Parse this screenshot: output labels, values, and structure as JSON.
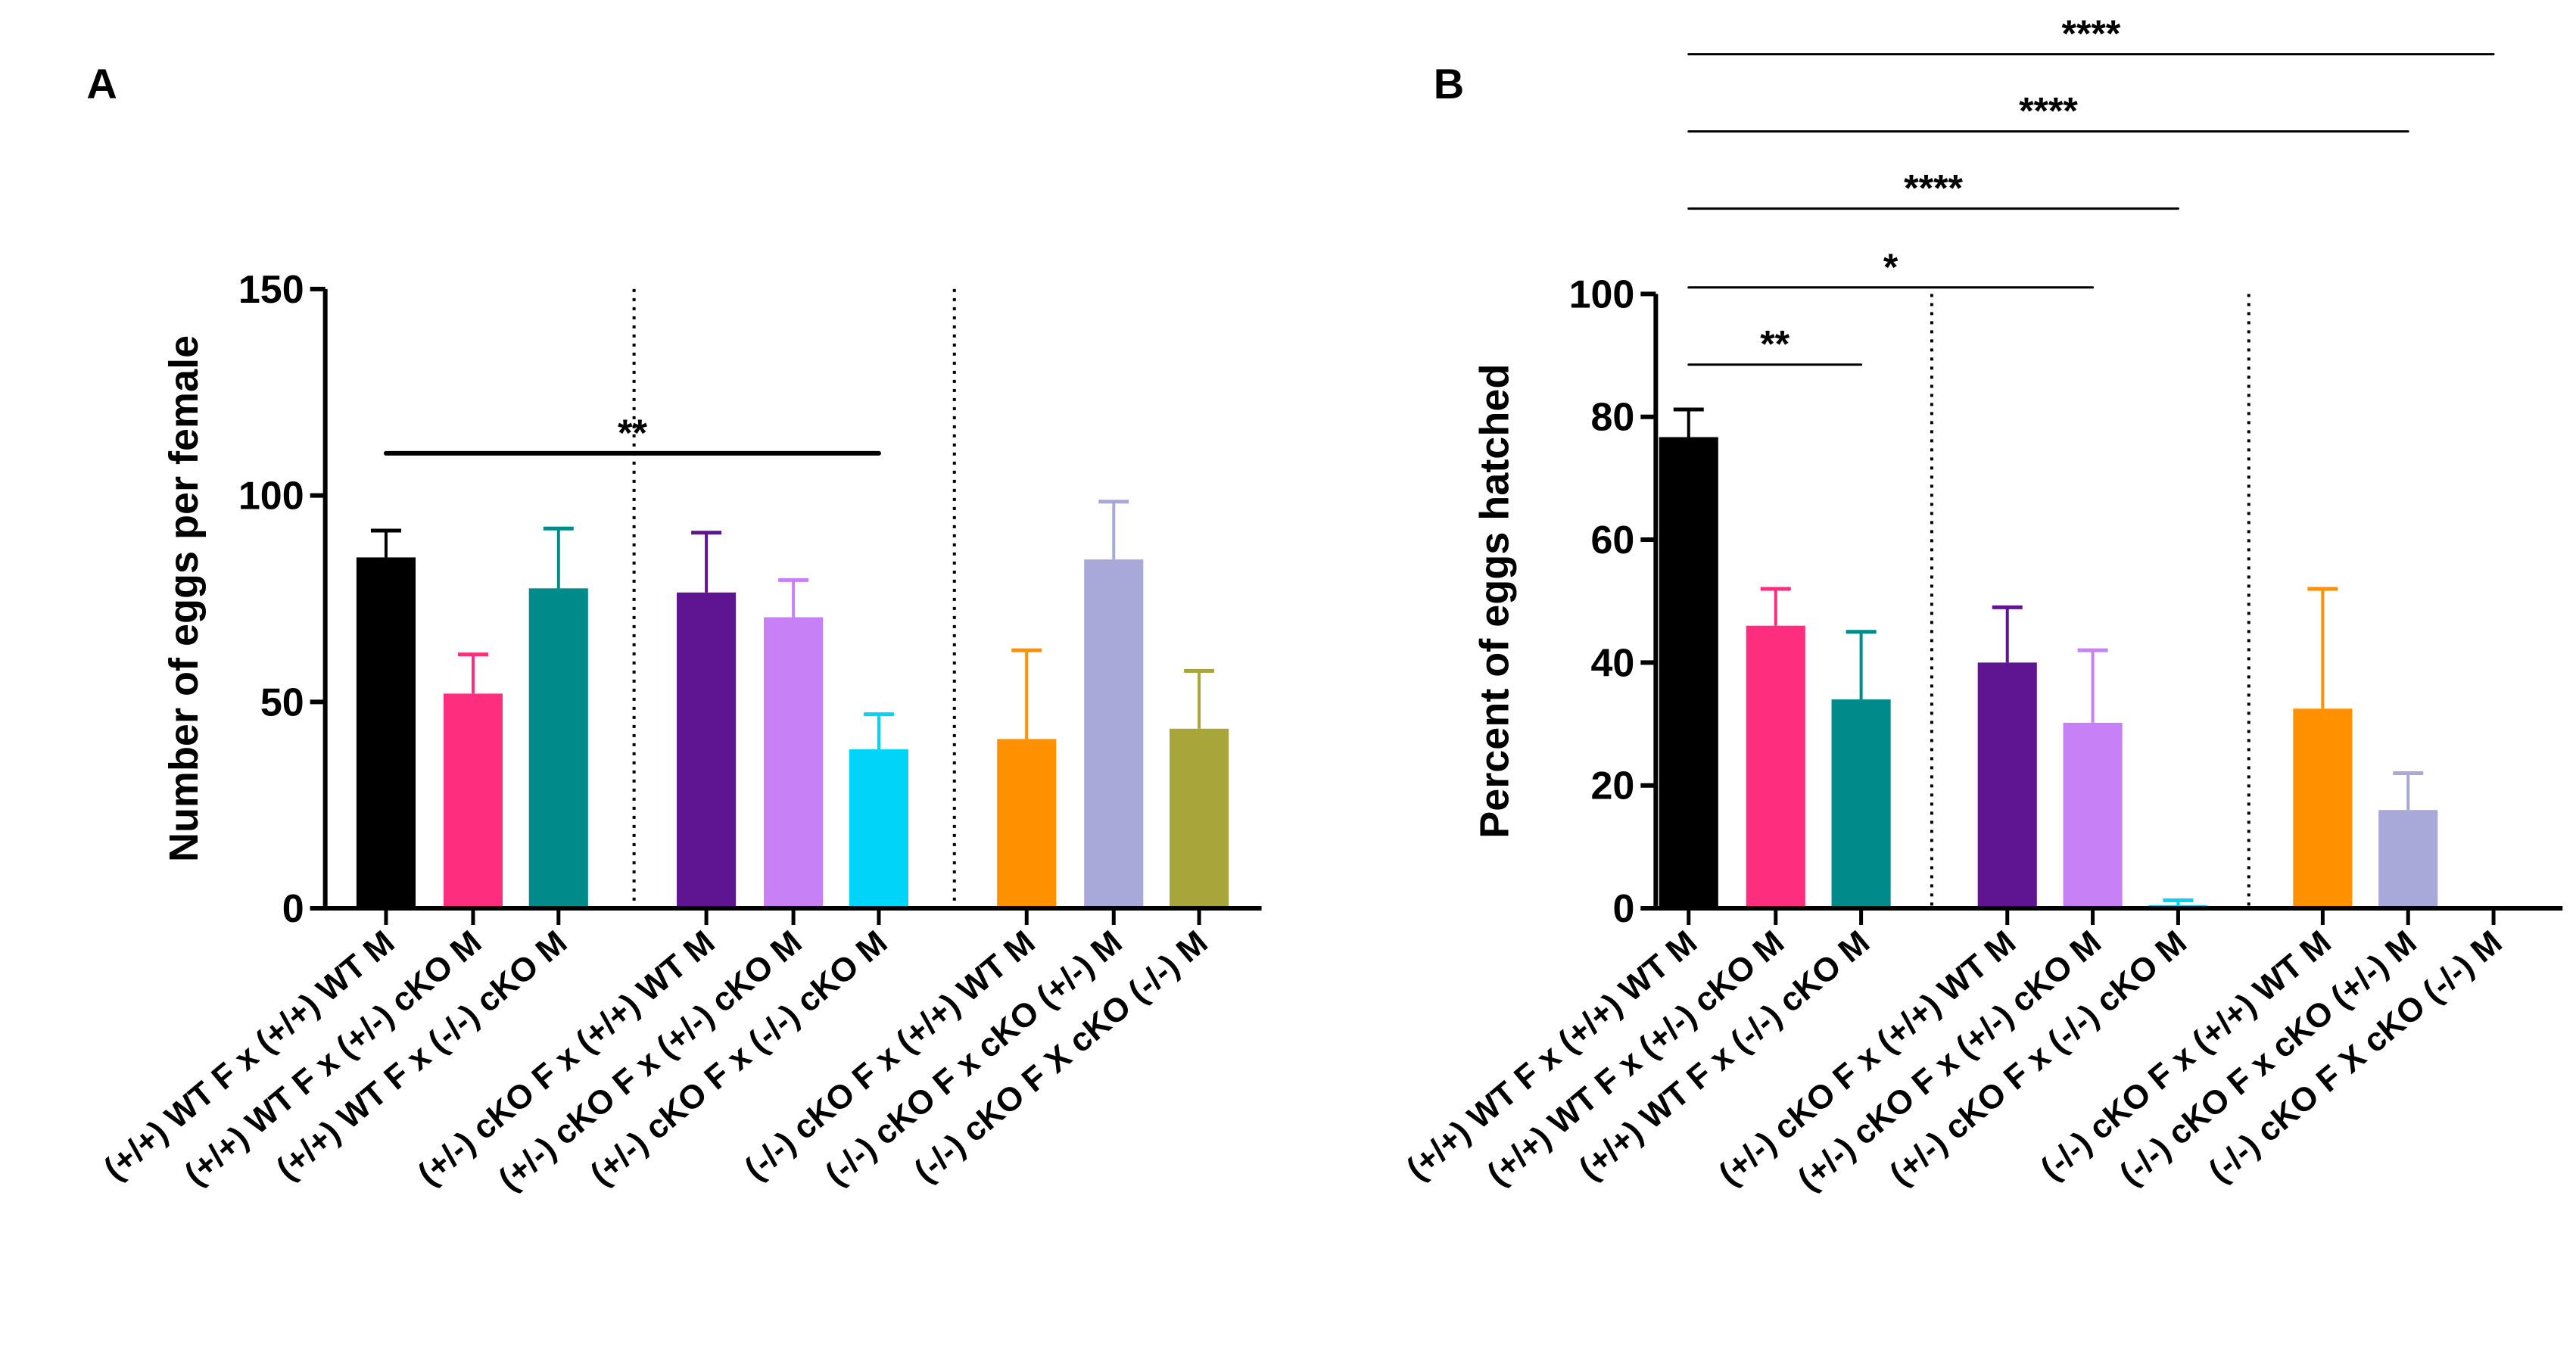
{
  "chart_data": [
    {
      "panel": "A",
      "type": "bar",
      "ylabel": "Number of eggs per female",
      "ylim": [
        0,
        150
      ],
      "yticks": [
        "0",
        "50",
        "100",
        "150"
      ],
      "categories": [
        "(+/+) WT F x (+/+) WT M",
        "(+/+) WT F x (+/-) cKO M",
        "(+/+) WT F x (-/-) cKO M",
        "(+/-) cKO F x (+/+) WT M",
        "(+/-) cKO F x (+/-) cKO M",
        "(+/-) cKO F x (-/-) cKO M",
        "(-/-) cKO F x (+/+) WT M",
        "(-/-) cKO F x cKO (+/-) M",
        "(-/-) cKO F X cKO (-/-) M"
      ],
      "values": [
        85,
        52,
        77.5,
        76.5,
        70.5,
        38.5,
        41,
        84.5,
        43.5
      ],
      "errors": [
        6.5,
        9.5,
        14.5,
        14.5,
        9,
        8.5,
        21.5,
        14,
        14
      ],
      "colors": [
        "#000000",
        "#ff2d7e",
        "#008b8b",
        "#5f1591",
        "#c880f7",
        "#00d4f8",
        "#ff9100",
        "#a9a9d9",
        "#a8a63a"
      ],
      "significance": [
        {
          "from": 0,
          "to": 5,
          "label": "**"
        }
      ]
    },
    {
      "panel": "B",
      "type": "bar",
      "ylabel": "Percent of eggs hatched",
      "ylim": [
        0,
        100
      ],
      "yticks": [
        "0",
        "20",
        "40",
        "60",
        "80",
        "100"
      ],
      "categories": [
        "(+/+) WT F x (+/+) WT M",
        "(+/+) WT F x (+/-) cKO M",
        "(+/+) WT F x (-/-) cKO M",
        "(+/-) cKO F x (+/+) WT M",
        "(+/-) cKO F x (+/-) cKO M",
        "(+/-) cKO F x (-/-) cKO M",
        "(-/-) cKO F x (+/+) WT M",
        "(-/-) cKO F x cKO (+/-) M",
        "(-/-) cKO F X cKO (-/-) M"
      ],
      "values": [
        76.7,
        46,
        34,
        40,
        30.2,
        0.5,
        32.5,
        16,
        0
      ],
      "errors": [
        4.5,
        6,
        11,
        9,
        11.8,
        0.8,
        19.5,
        6,
        0
      ],
      "colors": [
        "#000000",
        "#ff2d7e",
        "#008b8b",
        "#5f1591",
        "#c880f7",
        "#00d4f8",
        "#ff9100",
        "#a9a9d9",
        "#a8a63a"
      ],
      "significance": [
        {
          "from": 0,
          "to": 2,
          "label": "**"
        },
        {
          "from": 0,
          "to": 4,
          "label": "*"
        },
        {
          "from": 0,
          "to": 5,
          "label": "****"
        },
        {
          "from": 0,
          "to": 7,
          "label": "****"
        },
        {
          "from": 0,
          "to": 8,
          "label": "****"
        }
      ]
    }
  ]
}
